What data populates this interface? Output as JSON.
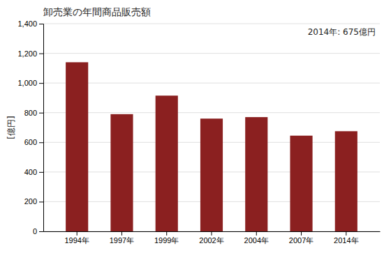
{
  "chart_data": {
    "type": "bar",
    "title": "卸売業の年間商品販売額",
    "ylabel": "[億円]",
    "annotation": "2014年: 675億円",
    "categories": [
      "1994年",
      "1997年",
      "1999年",
      "2002年",
      "2004年",
      "2007年",
      "2014年"
    ],
    "values": [
      1140,
      790,
      915,
      760,
      770,
      645,
      675
    ],
    "color": "#8B2020",
    "ylim": [
      0,
      1400
    ],
    "yticks": [
      0,
      200,
      400,
      600,
      800,
      {
        "value": 1000,
        "label": "1,000"
      },
      {
        "value": 1200,
        "label": "1,200"
      },
      {
        "value": 1400,
        "label": "1,400"
      }
    ],
    "grid": true
  }
}
